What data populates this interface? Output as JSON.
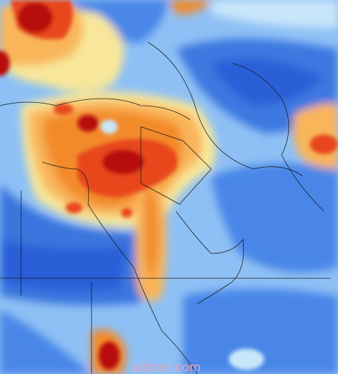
{
  "watermark": "albrari.com"
}
